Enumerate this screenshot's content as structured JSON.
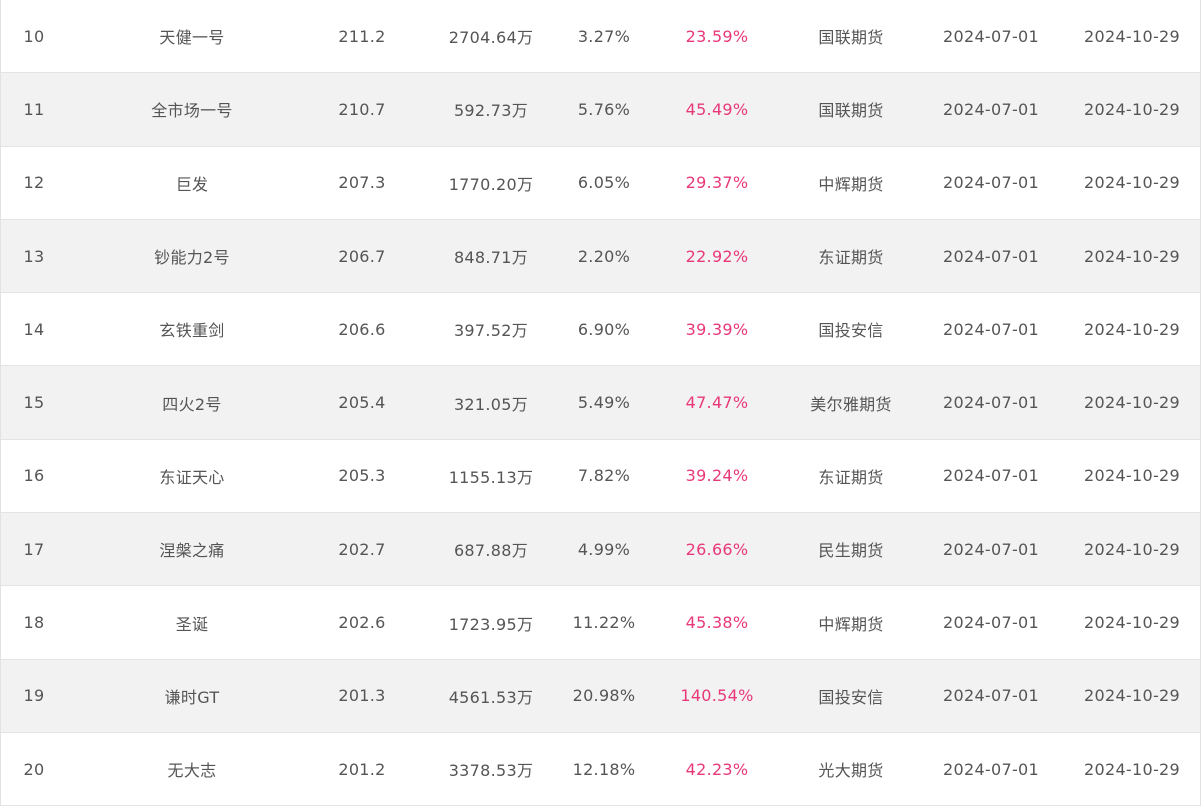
{
  "table": {
    "accent_return_color": "#e8387a",
    "rows": [
      {
        "rank": "10",
        "name": "天健一号",
        "score": "211.2",
        "scale": "2704.64万",
        "drawdown": "3.27%",
        "return": "23.59%",
        "broker": "国联期货",
        "start": "2024-07-01",
        "end": "2024-10-29"
      },
      {
        "rank": "11",
        "name": "全市场一号",
        "score": "210.7",
        "scale": "592.73万",
        "drawdown": "5.76%",
        "return": "45.49%",
        "broker": "国联期货",
        "start": "2024-07-01",
        "end": "2024-10-29"
      },
      {
        "rank": "12",
        "name": "巨发",
        "score": "207.3",
        "scale": "1770.20万",
        "drawdown": "6.05%",
        "return": "29.37%",
        "broker": "中辉期货",
        "start": "2024-07-01",
        "end": "2024-10-29"
      },
      {
        "rank": "13",
        "name": "钞能力2号",
        "score": "206.7",
        "scale": "848.71万",
        "drawdown": "2.20%",
        "return": "22.92%",
        "broker": "东证期货",
        "start": "2024-07-01",
        "end": "2024-10-29"
      },
      {
        "rank": "14",
        "name": "玄铁重剑",
        "score": "206.6",
        "scale": "397.52万",
        "drawdown": "6.90%",
        "return": "39.39%",
        "broker": "国投安信",
        "start": "2024-07-01",
        "end": "2024-10-29"
      },
      {
        "rank": "15",
        "name": "四火2号",
        "score": "205.4",
        "scale": "321.05万",
        "drawdown": "5.49%",
        "return": "47.47%",
        "broker": "美尔雅期货",
        "start": "2024-07-01",
        "end": "2024-10-29"
      },
      {
        "rank": "16",
        "name": "东证天心",
        "score": "205.3",
        "scale": "1155.13万",
        "drawdown": "7.82%",
        "return": "39.24%",
        "broker": "东证期货",
        "start": "2024-07-01",
        "end": "2024-10-29"
      },
      {
        "rank": "17",
        "name": "涅槃之痛",
        "score": "202.7",
        "scale": "687.88万",
        "drawdown": "4.99%",
        "return": "26.66%",
        "broker": "民生期货",
        "start": "2024-07-01",
        "end": "2024-10-29"
      },
      {
        "rank": "18",
        "name": "圣诞",
        "score": "202.6",
        "scale": "1723.95万",
        "drawdown": "11.22%",
        "return": "45.38%",
        "broker": "中辉期货",
        "start": "2024-07-01",
        "end": "2024-10-29"
      },
      {
        "rank": "19",
        "name": "谦时GT",
        "score": "201.3",
        "scale": "4561.53万",
        "drawdown": "20.98%",
        "return": "140.54%",
        "broker": "国投安信",
        "start": "2024-07-01",
        "end": "2024-10-29"
      },
      {
        "rank": "20",
        "name": "无大志",
        "score": "201.2",
        "scale": "3378.53万",
        "drawdown": "12.18%",
        "return": "42.23%",
        "broker": "光大期货",
        "start": "2024-07-01",
        "end": "2024-10-29"
      }
    ]
  }
}
